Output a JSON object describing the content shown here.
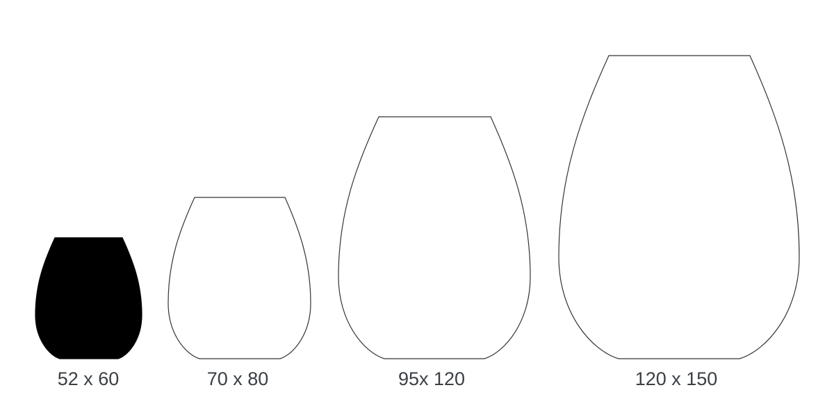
{
  "vases": [
    {
      "label": "52 x 60",
      "filled": true
    },
    {
      "label": "70 x 80",
      "filled": false
    },
    {
      "label": "95x 120",
      "filled": false
    },
    {
      "label": "120 x 150",
      "filled": false
    }
  ],
  "colors": {
    "fill": "#000000",
    "outline": "#333333",
    "label": "#3a3f44"
  }
}
